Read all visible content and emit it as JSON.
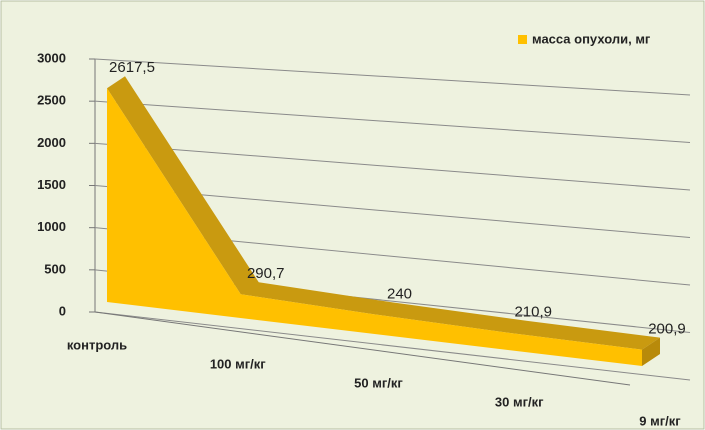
{
  "chart_data": {
    "type": "area",
    "categories": [
      "контроль",
      "100 мг/кг",
      "50 мг/кг",
      "30 мг/кг",
      "9 мг/кг"
    ],
    "series": [
      {
        "name": "масса опухоли, мг",
        "color": "#ffc000",
        "values": [
          2617.5,
          290.7,
          240,
          210.9,
          200.9
        ],
        "value_labels": [
          "2617,5",
          "290,7",
          "240",
          "210,9",
          "200,9"
        ]
      }
    ],
    "ylim": [
      0,
      3000
    ],
    "yticks": [
      0,
      500,
      1000,
      1500,
      2000,
      2500,
      3000
    ],
    "grid": true,
    "legend": "top-right"
  }
}
